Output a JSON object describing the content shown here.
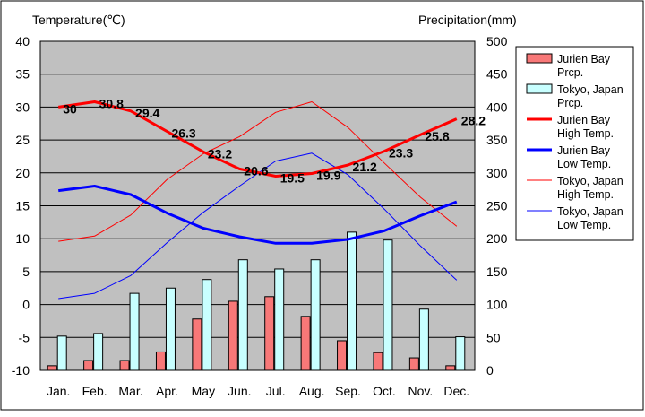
{
  "chart_data": {
    "type": "bar+line",
    "y_left": {
      "label": "Temperature(℃)",
      "min": -10,
      "max": 40,
      "step": 5
    },
    "y_right": {
      "label": "Precipitation(mm)",
      "min": 0,
      "max": 500,
      "step": 50
    },
    "categories": [
      "Jan.",
      "Feb.",
      "Mar.",
      "Apr.",
      "May",
      "Jun.",
      "Jul.",
      "Aug.",
      "Sep.",
      "Oct.",
      "Nov.",
      "Dec."
    ],
    "bar_series": [
      {
        "name": "Jurien Bay Prcp.",
        "legend_lines": [
          "Jurien Bay",
          "Prcp."
        ],
        "color": "#f87878",
        "values": [
          7,
          15,
          15,
          28,
          78,
          105,
          112,
          82,
          45,
          27,
          19,
          7
        ]
      },
      {
        "name": "Tokyo, Japan Prcp.",
        "legend_lines": [
          "Tokyo, Japan",
          "Prcp."
        ],
        "color": "#c8ffff",
        "values": [
          52,
          56,
          117,
          125,
          138,
          168,
          154,
          168,
          210,
          198,
          93,
          51
        ]
      }
    ],
    "line_series": [
      {
        "name": "Jurien Bay High Temp.",
        "legend_lines": [
          "Jurien Bay",
          "High Temp."
        ],
        "color": "#ff0000",
        "width": 3,
        "labeled": true,
        "values": [
          30,
          30.8,
          29.4,
          26.3,
          23.2,
          20.6,
          19.5,
          19.9,
          21.2,
          23.3,
          25.8,
          28.2
        ],
        "labels": [
          "30",
          "30.8",
          "29.4",
          "26.3",
          "23.2",
          "20.6",
          "19.5",
          "19.9",
          "21.2",
          "23.3",
          "25.8",
          "28.2"
        ]
      },
      {
        "name": "Jurien Bay Low Temp.",
        "legend_lines": [
          "Jurien Bay",
          "Low Temp."
        ],
        "color": "#0000ff",
        "width": 3,
        "labeled": false,
        "values": [
          17.3,
          18,
          16.7,
          13.9,
          11.6,
          10.3,
          9.3,
          9.3,
          9.9,
          11.2,
          13.5,
          15.6
        ]
      },
      {
        "name": "Tokyo, Japan High Temp.",
        "legend_lines": [
          "Tokyo, Japan",
          "High Temp."
        ],
        "color": "#ff0000",
        "width": 1,
        "labeled": false,
        "values": [
          9.6,
          10.4,
          13.6,
          19,
          22.9,
          25.5,
          29.2,
          30.8,
          26.9,
          21.5,
          16.3,
          11.9
        ]
      },
      {
        "name": "Tokyo, Japan Low Temp.",
        "legend_lines": [
          "Tokyo, Japan",
          "Low Temp."
        ],
        "color": "#0000ff",
        "width": 1,
        "labeled": false,
        "values": [
          0.9,
          1.7,
          4.4,
          9.4,
          14,
          18,
          21.8,
          23,
          19.7,
          14.5,
          8.9,
          3.7
        ]
      }
    ],
    "grid": true,
    "legend_position": "right"
  }
}
